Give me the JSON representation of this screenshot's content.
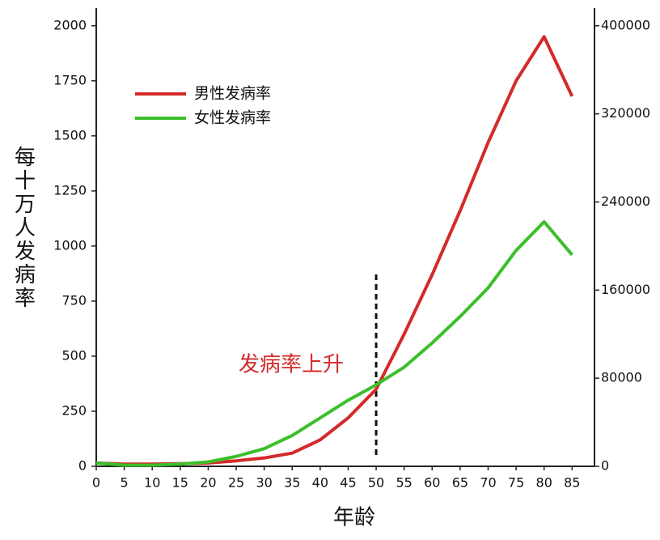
{
  "chart_data": {
    "type": "line",
    "x": [
      0,
      5,
      10,
      15,
      20,
      25,
      30,
      35,
      40,
      45,
      50,
      55,
      60,
      65,
      70,
      75,
      80,
      85
    ],
    "series": [
      {
        "name": "男性发病率",
        "color": "#d42a2a",
        "values": [
          15,
          10,
          10,
          12,
          15,
          25,
          38,
          60,
          120,
          220,
          350,
          600,
          870,
          1160,
          1470,
          1750,
          1950,
          1680
        ]
      },
      {
        "name": "女性发病率",
        "color": "#3cbf2a",
        "values": [
          15,
          5,
          5,
          10,
          20,
          45,
          80,
          140,
          220,
          300,
          370,
          450,
          560,
          680,
          810,
          980,
          1110,
          960
        ]
      }
    ],
    "xlim": [
      0,
      89
    ],
    "xticks": [
      0,
      5,
      10,
      15,
      20,
      25,
      30,
      35,
      40,
      45,
      50,
      55,
      60,
      65,
      70,
      75,
      80,
      85
    ],
    "ylim": [
      0,
      2080
    ],
    "yticks": [
      0,
      250,
      500,
      750,
      1000,
      1250,
      1500,
      1750,
      2000
    ],
    "y2lim": [
      0,
      416000
    ],
    "y2ticks": [
      0,
      80000,
      160000,
      240000,
      320000,
      400000
    ],
    "xlabel": "年龄",
    "ylabel": "每十万人发病率",
    "annotation": {
      "text": "发病率上升",
      "x": 50
    }
  }
}
